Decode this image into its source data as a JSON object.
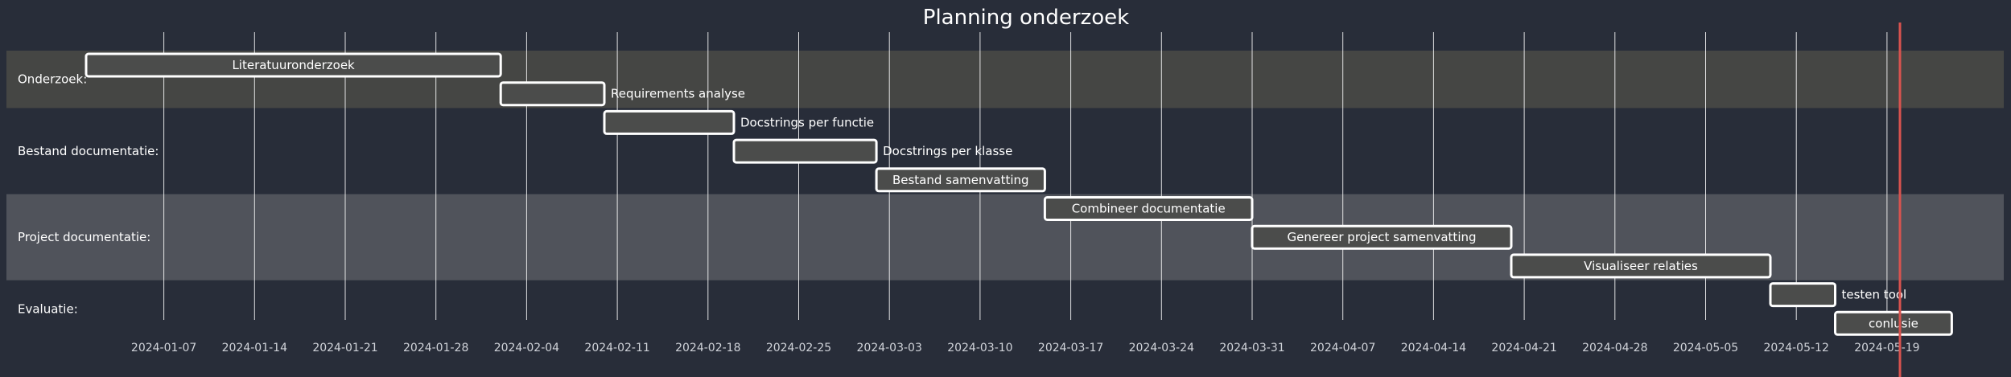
{
  "chart_data": {
    "type": "gantt",
    "title": "Planning onderzoek",
    "x_axis": {
      "type": "date",
      "range": [
        "2024-01-01",
        "2024-05-31"
      ],
      "ticks": [
        "2024-01-07",
        "2024-01-14",
        "2024-01-21",
        "2024-01-28",
        "2024-02-04",
        "2024-02-11",
        "2024-02-18",
        "2024-02-25",
        "2024-03-03",
        "2024-03-10",
        "2024-03-17",
        "2024-03-24",
        "2024-03-31",
        "2024-04-07",
        "2024-04-14",
        "2024-04-21",
        "2024-04-28",
        "2024-05-05",
        "2024-05-12",
        "2024-05-19"
      ]
    },
    "grid": true,
    "today_marker": "2024-05-20",
    "sections": [
      {
        "name": "Onderzoek:",
        "tasks": [
          {
            "name": "Literatuuronderzoek",
            "start": "2024-01-01",
            "end": "2024-02-02"
          },
          {
            "name": "Requirements analyse",
            "start": "2024-02-02",
            "end": "2024-02-10"
          }
        ]
      },
      {
        "name": "Bestand documentatie:",
        "tasks": [
          {
            "name": "Docstrings per functie",
            "start": "2024-02-10",
            "end": "2024-02-20"
          },
          {
            "name": "Docstrings per klasse",
            "start": "2024-02-20",
            "end": "2024-03-02"
          },
          {
            "name": "Bestand samenvatting",
            "start": "2024-03-02",
            "end": "2024-03-15"
          }
        ]
      },
      {
        "name": "Project documentatie:",
        "tasks": [
          {
            "name": "Combineer documentatie",
            "start": "2024-03-15",
            "end": "2024-03-31"
          },
          {
            "name": "Genereer project samenvatting",
            "start": "2024-03-31",
            "end": "2024-04-20"
          },
          {
            "name": "Visualiseer relaties",
            "start": "2024-04-20",
            "end": "2024-05-10"
          }
        ]
      },
      {
        "name": "Evaluatie:",
        "tasks": [
          {
            "name": "testen tool",
            "start": "2024-05-10",
            "end": "2024-05-15"
          },
          {
            "name": "conlusie",
            "start": "2024-05-15",
            "end": "2024-05-24"
          }
        ]
      }
    ]
  },
  "colors": {
    "background": "#282d39",
    "section_band_1": "#454644",
    "section_band_2": "#50535b",
    "task_fill": "#4b4c4b",
    "task_stroke": "#ffffff",
    "grid": "#ffffff",
    "today_line": "#d9534f",
    "text": "#ffffff",
    "tick_text": "#d0d3d9"
  }
}
